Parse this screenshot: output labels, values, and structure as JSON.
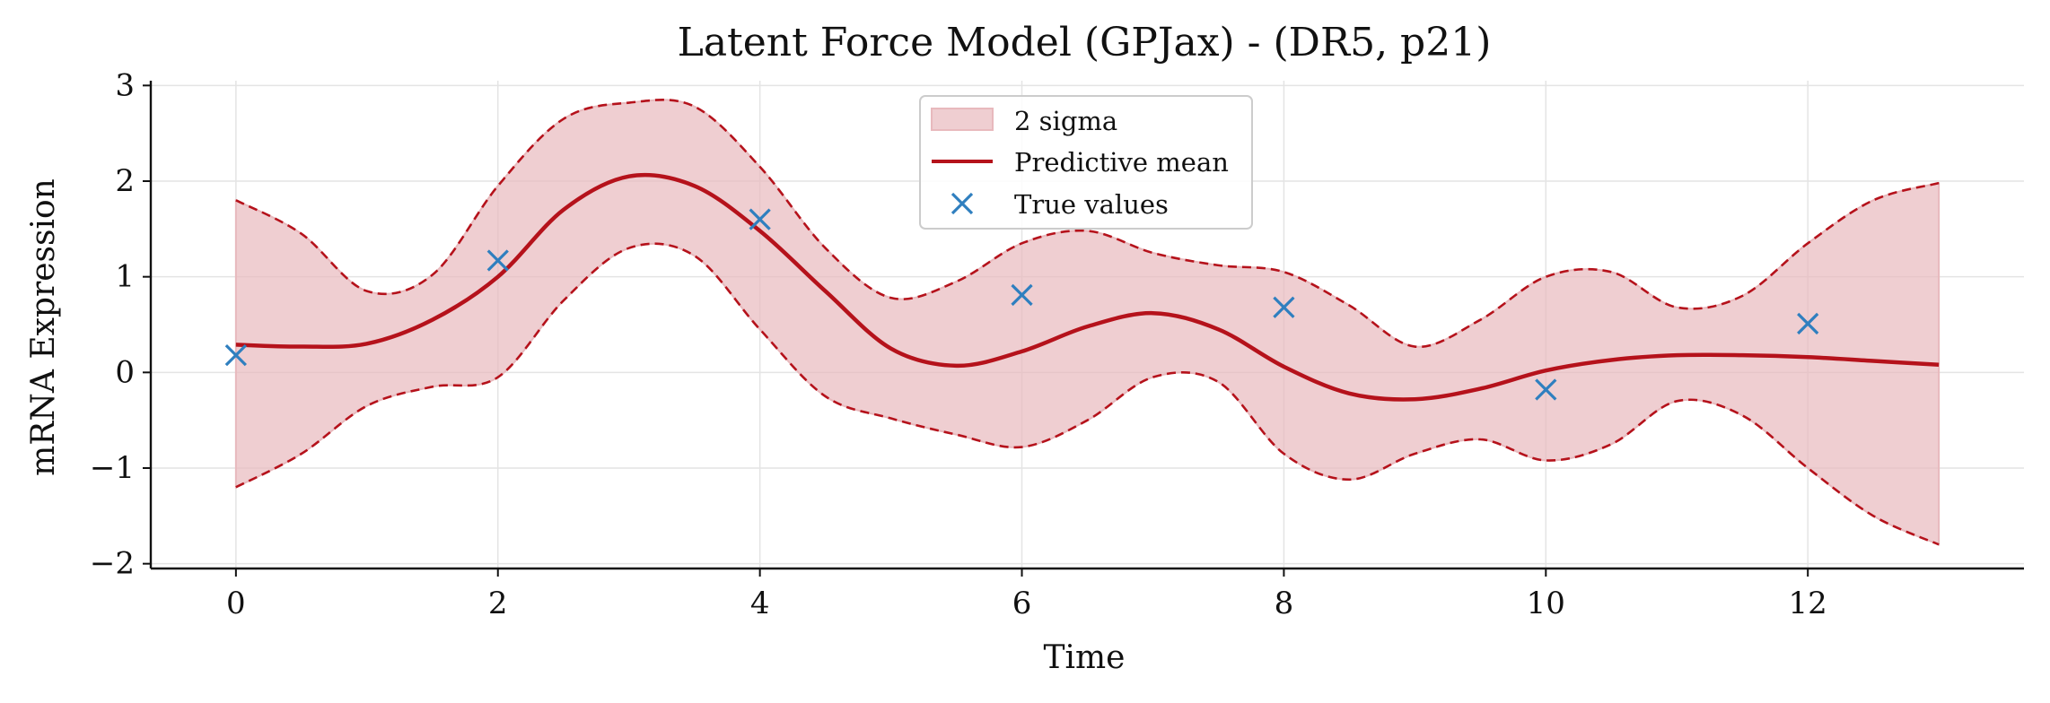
{
  "chart_data": {
    "type": "line",
    "title": "Latent Force Model (GPJax) - (DR5, p21)",
    "xlabel": "Time",
    "ylabel": "mRNA Expression",
    "xlim": [
      -0.65,
      13.65
    ],
    "ylim": [
      -2.05,
      3.05
    ],
    "xticks": [
      0,
      2,
      4,
      6,
      8,
      10,
      12
    ],
    "yticks": [
      -2,
      -1,
      0,
      1,
      2,
      3
    ],
    "xtick_labels": [
      "0",
      "2",
      "4",
      "6",
      "8",
      "10",
      "12"
    ],
    "ytick_labels": [
      "−2",
      "−1",
      "0",
      "1",
      "2",
      "3"
    ],
    "grid": true,
    "legend_position": "top-center",
    "legend": {
      "band_label": "2 sigma",
      "mean_label": "Predictive mean",
      "points_label": "True values"
    },
    "colors": {
      "band_fill": "#e8b9bd",
      "mean": "#b5121b",
      "points": "#2f7fbf",
      "grid": "#e4e4e4",
      "axis": "#111111"
    },
    "x": [
      0,
      0.5,
      1,
      1.5,
      2,
      2.5,
      3,
      3.5,
      4,
      4.5,
      5,
      5.5,
      6,
      6.5,
      7,
      7.5,
      8,
      8.5,
      9,
      9.5,
      10,
      10.5,
      11,
      11.5,
      12,
      12.5,
      13
    ],
    "series": [
      {
        "role": "upper_2sigma",
        "values": [
          1.8,
          1.45,
          0.85,
          1.02,
          1.95,
          2.65,
          2.82,
          2.78,
          2.15,
          1.3,
          0.78,
          0.95,
          1.35,
          1.48,
          1.25,
          1.12,
          1.05,
          0.7,
          0.27,
          0.55,
          1.0,
          1.05,
          0.68,
          0.8,
          1.35,
          1.8,
          1.98
        ]
      },
      {
        "role": "lower_2sigma",
        "values": [
          -1.2,
          -0.85,
          -0.35,
          -0.15,
          -0.05,
          0.75,
          1.3,
          1.22,
          0.45,
          -0.25,
          -0.48,
          -0.65,
          -0.78,
          -0.5,
          -0.05,
          -0.1,
          -0.85,
          -1.12,
          -0.85,
          -0.7,
          -0.92,
          -0.75,
          -0.3,
          -0.45,
          -1.0,
          -1.5,
          -1.8
        ]
      },
      {
        "role": "predictive_mean",
        "values": [
          0.29,
          0.27,
          0.3,
          0.55,
          1.0,
          1.7,
          2.05,
          1.95,
          1.48,
          0.85,
          0.25,
          0.07,
          0.22,
          0.48,
          0.62,
          0.45,
          0.06,
          -0.22,
          -0.28,
          -0.17,
          0.02,
          0.13,
          0.18,
          0.18,
          0.16,
          0.12,
          0.08
        ]
      }
    ],
    "points": {
      "x": [
        0,
        2,
        4,
        6,
        8,
        10,
        12
      ],
      "y": [
        0.18,
        1.17,
        1.6,
        0.81,
        0.68,
        -0.18,
        0.51
      ]
    }
  }
}
